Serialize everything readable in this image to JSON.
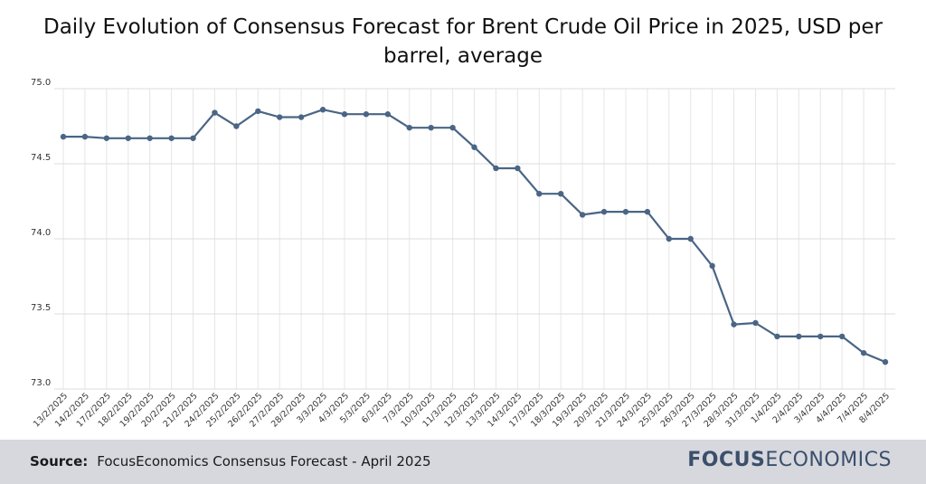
{
  "chart_data": {
    "type": "line",
    "title": "Daily Evolution of Consensus Forecast for Brent Crude Oil Price in 2025, USD per barrel, average",
    "xlabel": "",
    "ylabel": "",
    "ylim": [
      73.0,
      75.0
    ],
    "yticks": [
      "73.0",
      "73.5",
      "74.0",
      "74.5",
      "75.0"
    ],
    "grid": true,
    "color": "#4a6585",
    "categories": [
      "13/2/2025",
      "14/2/2025",
      "17/2/2025",
      "18/2/2025",
      "19/2/2025",
      "20/2/2025",
      "21/2/2025",
      "24/2/2025",
      "25/2/2025",
      "26/2/2025",
      "27/2/2025",
      "28/2/2025",
      "3/3/2025",
      "4/3/2025",
      "5/3/2025",
      "6/3/2025",
      "7/3/2025",
      "10/3/2025",
      "11/3/2025",
      "12/3/2025",
      "13/3/2025",
      "14/3/2025",
      "17/3/2025",
      "18/3/2025",
      "19/3/2025",
      "20/3/2025",
      "21/3/2025",
      "24/3/2025",
      "25/3/2025",
      "26/3/2025",
      "27/3/2025",
      "28/3/2025",
      "31/3/2025",
      "1/4/2025",
      "2/4/2025",
      "3/4/2025",
      "4/4/2025",
      "7/4/2025",
      "8/4/2025"
    ],
    "values": [
      74.68,
      74.68,
      74.67,
      74.67,
      74.67,
      74.67,
      74.67,
      74.84,
      74.75,
      74.85,
      74.81,
      74.81,
      74.86,
      74.83,
      74.83,
      74.83,
      74.74,
      74.74,
      74.74,
      74.61,
      74.47,
      74.47,
      74.3,
      74.3,
      74.16,
      74.18,
      74.18,
      74.18,
      74.0,
      74.0,
      73.82,
      73.43,
      73.44,
      73.35,
      73.35,
      73.35,
      73.35,
      73.24,
      73.18
    ]
  },
  "footer": {
    "source_label": "Source:",
    "source_text": "FocusEconomics Consensus Forecast - April 2025",
    "brand_bold": "FOCUS",
    "brand_regular": "ECONOMICS"
  }
}
